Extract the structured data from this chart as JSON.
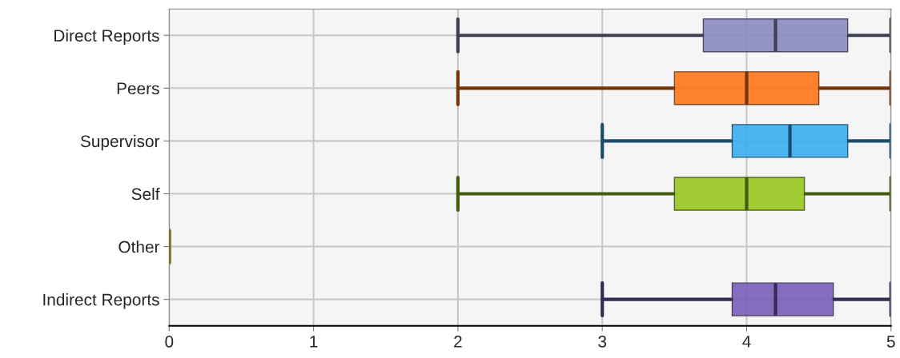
{
  "chart_data": {
    "type": "box",
    "orientation": "horizontal",
    "grid": true,
    "categories": [
      "Direct Reports",
      "Peers",
      "Supervisor",
      "Self",
      "Other",
      "Indirect Reports"
    ],
    "boxes": [
      {
        "low": 2,
        "q1": 3.7,
        "median": 4.2,
        "q3": 4.7,
        "high": 5
      },
      {
        "low": 2,
        "q1": 3.5,
        "median": 4.0,
        "q3": 4.5,
        "high": 5
      },
      {
        "low": 3,
        "q1": 3.9,
        "median": 4.3,
        "q3": 4.7,
        "high": 5
      },
      {
        "low": 2,
        "q1": 3.5,
        "median": 4.0,
        "q3": 4.4,
        "high": 5
      },
      {
        "low": 0,
        "q1": 0,
        "median": 0,
        "q3": 0,
        "high": 0
      },
      {
        "low": 3,
        "q1": 3.9,
        "median": 4.2,
        "q3": 4.6,
        "high": 5
      }
    ],
    "colors": [
      "#8a8ac0",
      "#ff7518",
      "#3aaef0",
      "#98c820",
      "#8a6a20",
      "#7860b8"
    ],
    "xlim": [
      0,
      5
    ],
    "xticks": [
      0,
      1,
      2,
      3,
      4,
      5
    ]
  }
}
